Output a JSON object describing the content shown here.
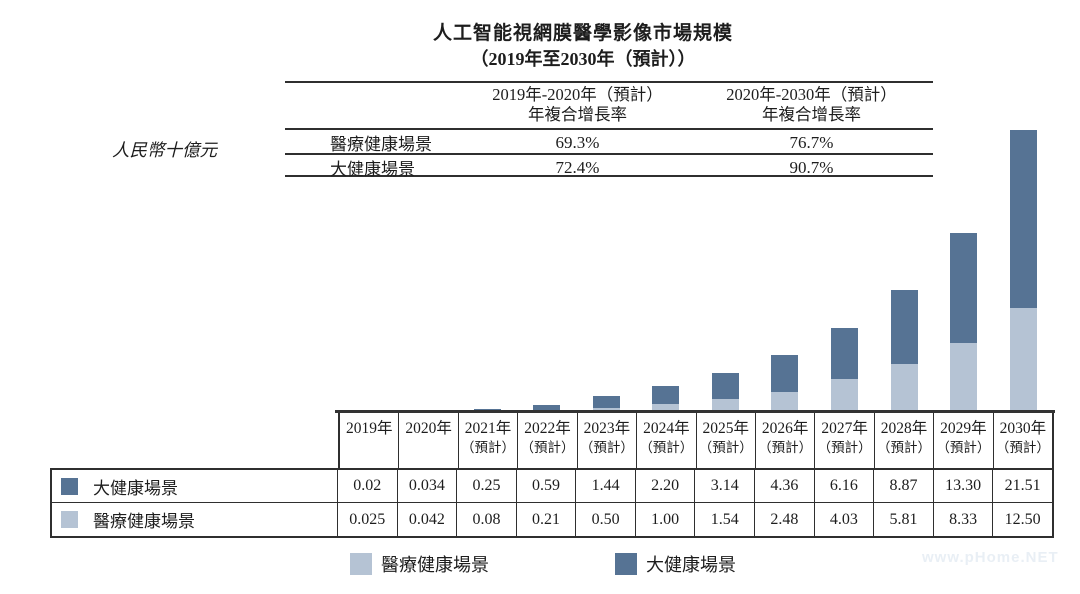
{
  "title": {
    "line1": "人工智能視網膜醫學影像市場規模",
    "line2": "（2019年至2030年（預計））"
  },
  "y_axis_label": "人民幣十億元",
  "cagr_table": {
    "headers": [
      {
        "line1": "2019年-2020年（預計）",
        "line2": "年複合增長率"
      },
      {
        "line1": "2020年-2030年（預計）",
        "line2": "年複合增長率"
      }
    ],
    "rows": [
      {
        "label": "醫療健康場景",
        "values": [
          "69.3%",
          "76.7%"
        ]
      },
      {
        "label": "大健康場景",
        "values": [
          "72.4%",
          "90.7%"
        ]
      }
    ]
  },
  "chart_data": {
    "type": "bar",
    "stacked": true,
    "title": "人工智能視網膜醫學影像市場規模（2019年至2030年（預計））",
    "ylabel": "人民幣十億元",
    "categories": [
      "2019年",
      "2020年",
      "2021年（預計）",
      "2022年（預計）",
      "2023年（預計）",
      "2024年（預計）",
      "2025年（預計）",
      "2026年（預計）",
      "2027年（預計）",
      "2028年（預計）",
      "2029年（預計）",
      "2030年（預計）"
    ],
    "series": [
      {
        "name": "醫療健康場景",
        "color": "#b5c3d4",
        "values": [
          0.025,
          0.042,
          0.08,
          0.21,
          0.5,
          1.0,
          1.54,
          2.48,
          4.03,
          5.81,
          8.33,
          12.5
        ]
      },
      {
        "name": "大健康場景",
        "color": "#567394",
        "values": [
          0.02,
          0.034,
          0.25,
          0.59,
          1.44,
          2.2,
          3.14,
          4.36,
          6.16,
          8.87,
          13.3,
          21.51
        ]
      }
    ],
    "ylim": [
      0,
      35
    ],
    "grid": false,
    "legend_position": "bottom"
  },
  "data_table": {
    "year_headers": [
      {
        "year": "2019年",
        "note": ""
      },
      {
        "year": "2020年",
        "note": ""
      },
      {
        "year": "2021年",
        "note": "（預計）"
      },
      {
        "year": "2022年",
        "note": "（預計）"
      },
      {
        "year": "2023年",
        "note": "（預計）"
      },
      {
        "year": "2024年",
        "note": "（預計）"
      },
      {
        "year": "2025年",
        "note": "（預計）"
      },
      {
        "year": "2026年",
        "note": "（預計）"
      },
      {
        "year": "2027年",
        "note": "（預計）"
      },
      {
        "year": "2028年",
        "note": "（預計）"
      },
      {
        "year": "2029年",
        "note": "（預計）"
      },
      {
        "year": "2030年",
        "note": "（預計）"
      }
    ],
    "rows": [
      {
        "label": "大健康場景",
        "color": "#567394",
        "values": [
          "0.02",
          "0.034",
          "0.25",
          "0.59",
          "1.44",
          "2.20",
          "3.14",
          "4.36",
          "6.16",
          "8.87",
          "13.30",
          "21.51"
        ]
      },
      {
        "label": "醫療健康場景",
        "color": "#b5c3d4",
        "values": [
          "0.025",
          "0.042",
          "0.08",
          "0.21",
          "0.50",
          "1.00",
          "1.54",
          "2.48",
          "4.03",
          "5.81",
          "8.33",
          "12.50"
        ]
      }
    ]
  },
  "legend": [
    {
      "label": "醫療健康場景",
      "color": "#b5c3d4"
    },
    {
      "label": "大健康場景",
      "color": "#567394"
    }
  ],
  "watermark": "www.pHome.NET"
}
